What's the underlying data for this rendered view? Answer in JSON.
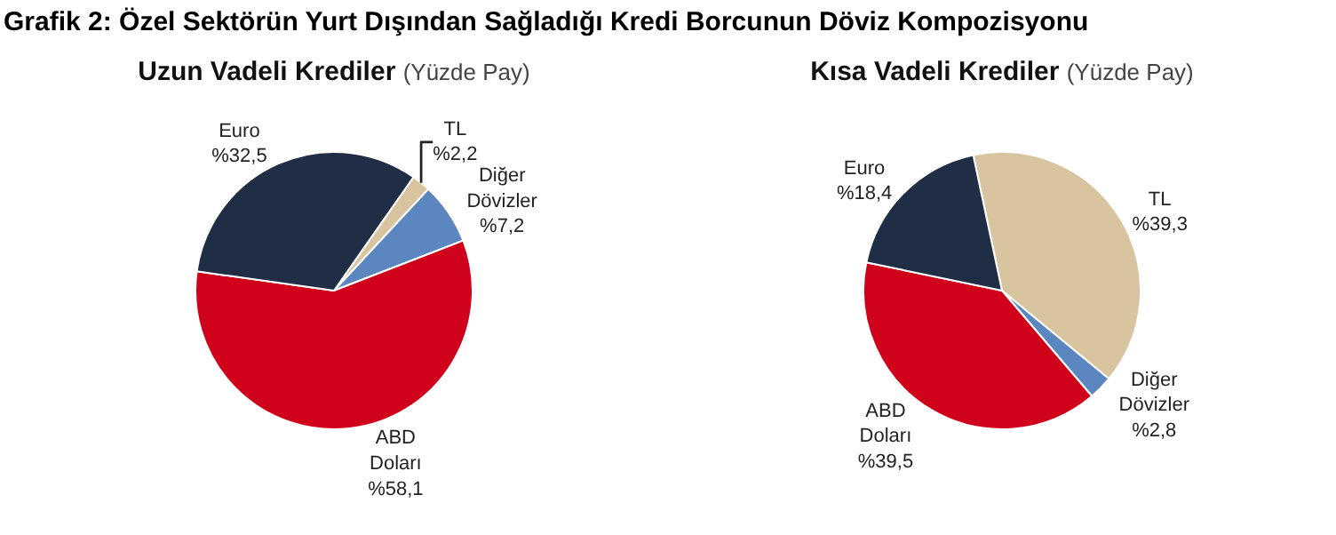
{
  "chart_data": [
    {
      "type": "pie",
      "title": "Uzun Vadeli Krediler",
      "subtitle": "(Yüzde Pay)",
      "annotations": [
        "Grafik 2: Özel Sektörün Yurt Dışından Sağladığı Kredi Borcunun Döviz Kompozisyonu"
      ],
      "categories": [
        "TL",
        "Diğer Dövizler",
        "ABD Doları",
        "Euro"
      ],
      "values": [
        2.2,
        7.2,
        58.1,
        32.5
      ],
      "value_labels": [
        "%2,2",
        "%7,2",
        "%58,1",
        "%32,5"
      ],
      "colors": [
        "#d9c4a0",
        "#5b86bf",
        "#d0021b",
        "#1f2d45"
      ],
      "legend": false
    },
    {
      "type": "pie",
      "title": "Kısa Vadeli Krediler",
      "subtitle": "(Yüzde Pay)",
      "categories": [
        "TL",
        "Diğer Dövizler",
        "ABD Doları",
        "Euro"
      ],
      "values": [
        39.3,
        2.8,
        39.5,
        18.4
      ],
      "value_labels": [
        "%39,3",
        "%2,8",
        "%39,5",
        "%18,4"
      ],
      "colors": [
        "#d9c4a0",
        "#5b86bf",
        "#d0021b",
        "#1f2d45"
      ],
      "legend": false
    }
  ]
}
